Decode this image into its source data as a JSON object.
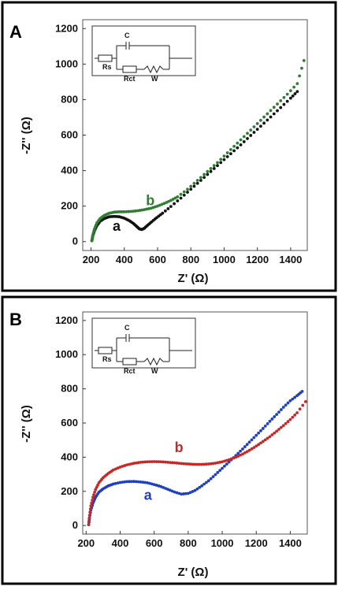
{
  "panels": [
    {
      "label": "A",
      "circuit": {
        "rs": "Rs",
        "c": "C",
        "rct": "Rct",
        "w": "W"
      },
      "chart_data": {
        "type": "scatter",
        "xlabel": "Z' (Ω)",
        "ylabel": "-Z'' (Ω)",
        "xlim": [
          150,
          1500
        ],
        "ylim": [
          -50,
          1250
        ],
        "xticks": [
          200,
          400,
          600,
          800,
          1000,
          1200,
          1400
        ],
        "yticks": [
          0,
          200,
          400,
          600,
          800,
          1000,
          1200
        ],
        "series": [
          {
            "name": "a",
            "color": "#111111",
            "x": [
              205,
              210,
              220,
              235,
              255,
              280,
              310,
              340,
              370,
              400,
              430,
              455,
              475,
              490,
              505,
              520,
              540,
              565,
              595,
              630,
              680,
              740,
              800,
              860,
              920,
              980,
              1040,
              1100,
              1160,
              1220,
              1280,
              1340,
              1400,
              1440
            ],
            "y": [
              5,
              30,
              60,
              90,
              115,
              130,
              140,
              142,
              140,
              132,
              118,
              102,
              85,
              72,
              68,
              75,
              92,
              112,
              135,
              160,
              198,
              245,
              295,
              345,
              395,
              445,
              495,
              545,
              598,
              650,
              702,
              755,
              808,
              845
            ]
          },
          {
            "name": "b",
            "color": "#2e7d32",
            "x": [
              205,
              210,
              220,
              235,
              255,
              280,
              310,
              340,
              370,
              400,
              440,
              480,
              520,
              560,
              600,
              640,
              680,
              720,
              780,
              840,
              900,
              960,
              1020,
              1080,
              1140,
              1200,
              1260,
              1320,
              1380,
              1440,
              1480
            ],
            "y": [
              5,
              35,
              70,
              105,
              130,
              148,
              160,
              166,
              168,
              168,
              170,
              174,
              180,
              188,
              200,
              215,
              232,
              252,
              295,
              345,
              395,
              445,
              500,
              555,
              610,
              665,
              720,
              775,
              830,
              890,
              1020
            ]
          }
        ],
        "annotations": [
          {
            "text": "a",
            "color": "#111111",
            "x": 330,
            "y": 60
          },
          {
            "text": "b",
            "color": "#2e7d32",
            "x": 530,
            "y": 205
          }
        ]
      }
    },
    {
      "label": "B",
      "circuit": {
        "rs": "Rs",
        "c": "C",
        "rct": "Rct",
        "w": "W"
      },
      "chart_data": {
        "type": "scatter",
        "xlabel": "Z' (Ω)",
        "ylabel": "-Z'' (Ω)",
        "xlim": [
          180,
          1500
        ],
        "ylim": [
          -50,
          1250
        ],
        "xticks": [
          200,
          400,
          600,
          800,
          1000,
          1200,
          1400
        ],
        "yticks": [
          0,
          200,
          400,
          600,
          800,
          1000,
          1200
        ],
        "series": [
          {
            "name": "a",
            "color": "#1f3fbf",
            "x": [
              215,
              220,
              228,
              240,
              255,
              275,
              300,
              330,
              360,
              400,
              440,
              480,
              520,
              560,
              600,
              640,
              680,
              720,
              760,
              800,
              840,
              880,
              920,
              960,
              1000,
              1040,
              1080,
              1120,
              1160,
              1200,
              1240,
              1280,
              1320,
              1360,
              1400,
              1440,
              1470
            ],
            "y": [
              5,
              45,
              90,
              130,
              165,
              195,
              215,
              232,
              243,
              252,
              257,
              258,
              255,
              250,
              240,
              228,
              212,
              196,
              184,
              188,
              205,
              232,
              262,
              298,
              335,
              372,
              410,
              448,
              488,
              528,
              568,
              610,
              650,
              692,
              730,
              760,
              785
            ]
          },
          {
            "name": "b",
            "color": "#c62828",
            "x": [
              215,
              220,
              228,
              240,
              255,
              275,
              300,
              330,
              360,
              400,
              440,
              480,
              520,
              560,
              600,
              640,
              680,
              720,
              760,
              800,
              840,
              880,
              920,
              960,
              1000,
              1040,
              1080,
              1120,
              1160,
              1200,
              1240,
              1280,
              1320,
              1360,
              1400,
              1440,
              1490
            ],
            "y": [
              5,
              60,
              115,
              165,
              210,
              250,
              280,
              305,
              325,
              342,
              355,
              364,
              370,
              373,
              374,
              373,
              370,
              367,
              363,
              360,
              358,
              358,
              360,
              365,
              373,
              385,
              400,
              418,
              440,
              465,
              492,
              520,
              552,
              585,
              620,
              660,
              725
            ]
          }
        ],
        "annotations": [
          {
            "text": "b",
            "color": "#c62828",
            "x": 720,
            "y": 430
          },
          {
            "text": "a",
            "color": "#1f3fbf",
            "x": 540,
            "y": 150
          }
        ]
      }
    }
  ]
}
